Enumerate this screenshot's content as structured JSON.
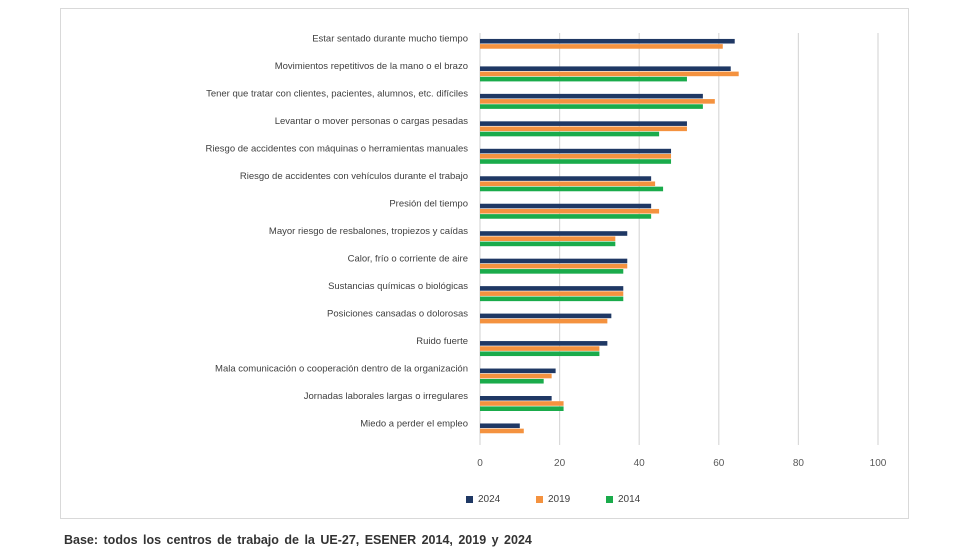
{
  "chart_data": {
    "type": "bar",
    "orientation": "horizontal",
    "categories": [
      "Estar sentado durante mucho tiempo",
      "Movimientos repetitivos de la mano o el brazo",
      "Tener que tratar con clientes, pacientes, alumnos, etc. difíciles",
      "Levantar o mover personas o cargas pesadas",
      "Riesgo de accidentes con máquinas o herramientas manuales",
      "Riesgo de accidentes con vehículos durante el trabajo",
      "Presión del tiempo",
      "Mayor riesgo de resbalones, tropiezos y caídas",
      "Calor, frío o corriente de aire",
      "Sustancias químicas o biológicas",
      "Posiciones cansadas o dolorosas",
      "Ruido fuerte",
      "Mala comunicación o cooperación dentro de la organización",
      "Jornadas laborales largas o irregulares",
      "Miedo a perder el empleo"
    ],
    "series": [
      {
        "name": "2024",
        "color": "#1f3864",
        "values": [
          64,
          63,
          56,
          52,
          48,
          43,
          43,
          37,
          37,
          36,
          33,
          32,
          19,
          18,
          10
        ]
      },
      {
        "name": "2019",
        "color": "#f4923f",
        "values": [
          61,
          65,
          59,
          52,
          48,
          44,
          45,
          34,
          37,
          36,
          32,
          30,
          18,
          21,
          11
        ]
      },
      {
        "name": "2014",
        "color": "#1aab4b",
        "values": [
          null,
          52,
          56,
          45,
          48,
          46,
          43,
          34,
          36,
          36,
          null,
          30,
          16,
          21,
          null
        ]
      }
    ],
    "xlim": [
      0,
      100
    ],
    "xticks": [
      "0",
      "20",
      "40",
      "60",
      "80",
      "100"
    ],
    "grid": true,
    "legend": "bottom",
    "gridColor": "#d9d9d9"
  },
  "footnote": "Base:  todos  los  centros de trabajo  de  la  UE-27,  ESENER  2014, 2019 y 2024"
}
